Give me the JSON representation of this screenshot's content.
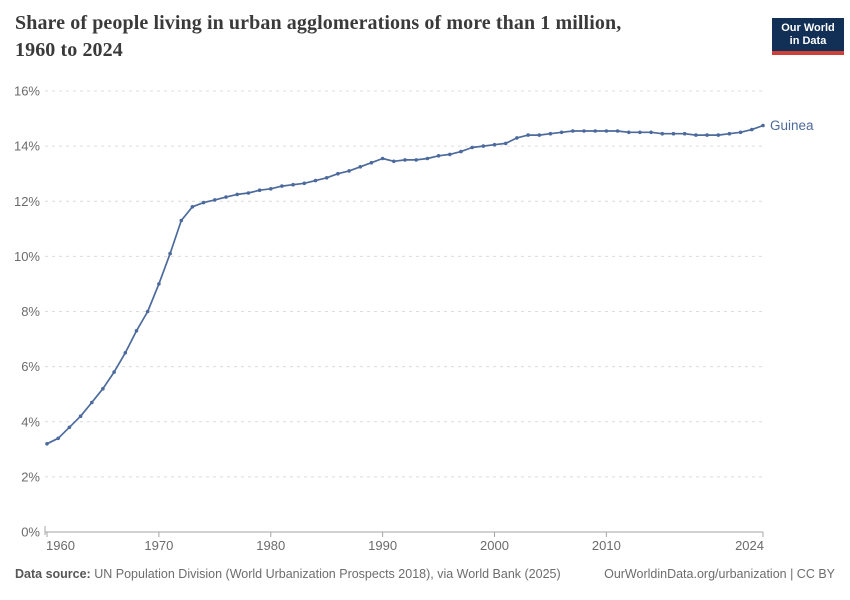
{
  "title": {
    "text": "Share of people living in urban agglomerations of more than 1 million, 1960 to 2024",
    "lines": [
      "Share of people living in urban agglomerations of more than 1 million,",
      "1960 to 2024"
    ]
  },
  "logo": {
    "line1": "Our World",
    "line2": "in Data",
    "bg_color": "#122f55",
    "accent_color": "#ce413b"
  },
  "footer": {
    "source_label": "Data source:",
    "source_text": "UN Population Division (World Urbanization Prospects 2018), via World Bank (2025)",
    "attribution": "OurWorldinData.org/urbanization | CC BY"
  },
  "chart_data": {
    "type": "line",
    "title": "Share of people living in urban agglomerations of more than 1 million, 1960 to 2024",
    "entity_label": "Guinea",
    "line_color": "#4C6A9C",
    "ylim": [
      0,
      16
    ],
    "y_ticks": [
      0,
      2,
      4,
      6,
      8,
      10,
      12,
      14,
      16
    ],
    "y_tick_suffix": "%",
    "x_ticks": [
      1960,
      1970,
      1980,
      1990,
      2000,
      2010,
      2024
    ],
    "grid": "horizontal-dashed",
    "legend_position": "end-of-line",
    "x": [
      1960,
      1961,
      1962,
      1963,
      1964,
      1965,
      1966,
      1967,
      1968,
      1969,
      1970,
      1971,
      1972,
      1973,
      1974,
      1975,
      1976,
      1977,
      1978,
      1979,
      1980,
      1981,
      1982,
      1983,
      1984,
      1985,
      1986,
      1987,
      1988,
      1989,
      1990,
      1991,
      1992,
      1993,
      1994,
      1995,
      1996,
      1997,
      1998,
      1999,
      2000,
      2001,
      2002,
      2003,
      2004,
      2005,
      2006,
      2007,
      2008,
      2009,
      2010,
      2011,
      2012,
      2013,
      2014,
      2015,
      2016,
      2017,
      2018,
      2019,
      2020,
      2021,
      2022,
      2023,
      2024
    ],
    "values": [
      3.2,
      3.4,
      3.8,
      4.2,
      4.7,
      5.2,
      5.8,
      6.5,
      7.3,
      8.0,
      9.0,
      10.1,
      11.3,
      11.8,
      11.95,
      12.05,
      12.15,
      12.25,
      12.3,
      12.4,
      12.45,
      12.55,
      12.6,
      12.65,
      12.75,
      12.85,
      13.0,
      13.1,
      13.25,
      13.4,
      13.55,
      13.45,
      13.5,
      13.5,
      13.55,
      13.65,
      13.7,
      13.8,
      13.95,
      14.0,
      14.05,
      14.1,
      14.3,
      14.4,
      14.4,
      14.45,
      14.5,
      14.55,
      14.55,
      14.55,
      14.55,
      14.55,
      14.5,
      14.5,
      14.5,
      14.45,
      14.45,
      14.45,
      14.4,
      14.4,
      14.4,
      14.45,
      14.5,
      14.6,
      14.75
    ]
  }
}
